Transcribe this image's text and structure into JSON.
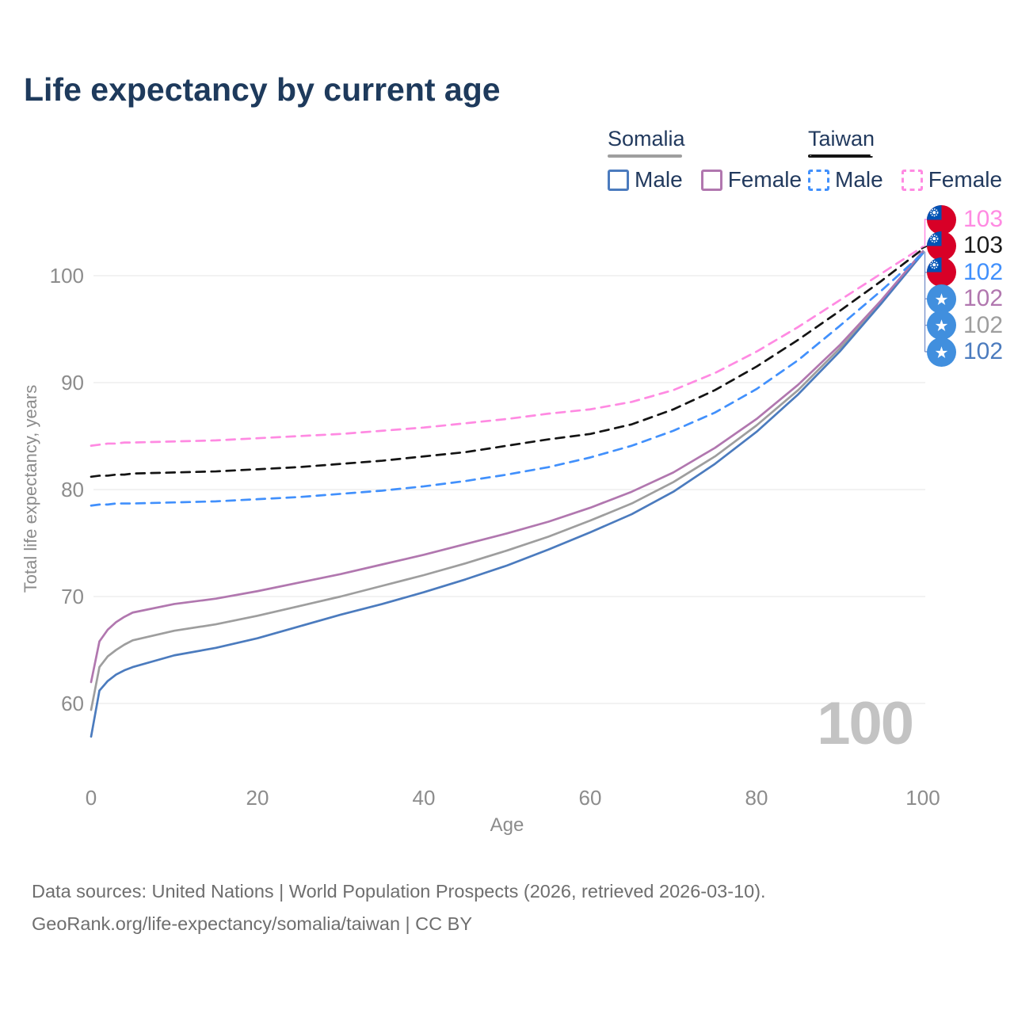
{
  "header": {
    "title": "Life expectancy by current age"
  },
  "legend": {
    "groups": [
      {
        "country": "Somalia",
        "line_style": "solid",
        "line_color": "#9e9e9e",
        "items": [
          {
            "label": "Male",
            "color": "#4b7bbe",
            "dashed": false
          },
          {
            "label": "Female",
            "color": "#b177af",
            "dashed": false
          }
        ]
      },
      {
        "country": "Taiwan",
        "line_style": "dashed",
        "line_color": "#141414",
        "items": [
          {
            "label": "Male",
            "color": "#4190fc",
            "dashed": true
          },
          {
            "label": "Female",
            "color": "#ff8ae2",
            "dashed": true
          }
        ]
      }
    ]
  },
  "chart_data": {
    "type": "line",
    "title": "Life expectancy by current age",
    "xlabel": "Age",
    "ylabel": "Total life expectancy, years",
    "x_ticks": [
      0,
      20,
      40,
      60,
      80,
      100
    ],
    "y_ticks": [
      60,
      70,
      80,
      90,
      100
    ],
    "xlim": [
      0,
      100
    ],
    "ylim": [
      56,
      104
    ],
    "grid": "horizontal",
    "legend_position": "top-right",
    "x": [
      0,
      1,
      2,
      3,
      4,
      5,
      10,
      15,
      20,
      25,
      30,
      35,
      40,
      45,
      50,
      55,
      60,
      65,
      70,
      75,
      80,
      85,
      90,
      95,
      100
    ],
    "series": [
      {
        "id": "somalia-all",
        "name": "Somalia All",
        "country": "Somalia",
        "sex": "all",
        "color": "#9e9e9e",
        "dashed": false,
        "values": [
          59.4,
          63.4,
          64.4,
          65.0,
          65.5,
          65.9,
          66.8,
          67.4,
          68.2,
          69.1,
          70.0,
          71.0,
          72.0,
          73.1,
          74.3,
          75.6,
          77.1,
          78.7,
          80.7,
          83.1,
          86.0,
          89.3,
          93.2,
          97.5,
          102.2
        ]
      },
      {
        "id": "somalia-male",
        "name": "Somalia Male",
        "country": "Somalia",
        "sex": "male",
        "color": "#4b7bbe",
        "dashed": false,
        "values": [
          56.9,
          61.2,
          62.1,
          62.7,
          63.1,
          63.4,
          64.5,
          65.2,
          66.1,
          67.2,
          68.3,
          69.3,
          70.4,
          71.6,
          72.9,
          74.4,
          76.0,
          77.7,
          79.8,
          82.4,
          85.4,
          88.9,
          92.9,
          97.4,
          102.1
        ]
      },
      {
        "id": "somalia-female",
        "name": "Somalia Female",
        "country": "Somalia",
        "sex": "female",
        "color": "#b177af",
        "dashed": false,
        "values": [
          62.0,
          65.8,
          66.9,
          67.6,
          68.1,
          68.5,
          69.3,
          69.8,
          70.5,
          71.3,
          72.1,
          73.0,
          73.9,
          74.9,
          75.9,
          77.0,
          78.3,
          79.8,
          81.6,
          83.9,
          86.6,
          89.8,
          93.5,
          97.7,
          102.3
        ]
      },
      {
        "id": "taiwan-male",
        "name": "Taiwan Male",
        "country": "Taiwan",
        "sex": "male",
        "color": "#4190fc",
        "dashed": true,
        "values": [
          78.5,
          78.6,
          78.6,
          78.7,
          78.7,
          78.7,
          78.8,
          78.9,
          79.1,
          79.3,
          79.6,
          79.9,
          80.3,
          80.8,
          81.4,
          82.1,
          83.0,
          84.1,
          85.5,
          87.2,
          89.4,
          92.1,
          95.3,
          98.6,
          102.1
        ]
      },
      {
        "id": "taiwan-all",
        "name": "Taiwan All",
        "country": "Taiwan",
        "sex": "all",
        "color": "#141414",
        "dashed": true,
        "values": [
          81.2,
          81.3,
          81.3,
          81.4,
          81.4,
          81.5,
          81.6,
          81.7,
          81.9,
          82.1,
          82.4,
          82.7,
          83.1,
          83.5,
          84.1,
          84.7,
          85.2,
          86.1,
          87.5,
          89.3,
          91.5,
          94.0,
          96.7,
          99.5,
          102.5
        ]
      },
      {
        "id": "taiwan-female",
        "name": "Taiwan Female",
        "country": "Taiwan",
        "sex": "female",
        "color": "#ff8ae2",
        "dashed": true,
        "values": [
          84.1,
          84.2,
          84.3,
          84.3,
          84.4,
          84.4,
          84.5,
          84.6,
          84.8,
          85.0,
          85.2,
          85.5,
          85.8,
          86.2,
          86.6,
          87.1,
          87.5,
          88.2,
          89.3,
          90.9,
          92.9,
          95.2,
          97.7,
          100.2,
          102.7
        ]
      }
    ],
    "end_labels": [
      {
        "series_id": "taiwan-female",
        "flag": "taiwan",
        "value": "103",
        "color": "#ff8ae2"
      },
      {
        "series_id": "taiwan-all",
        "flag": "taiwan",
        "value": "103",
        "color": "#1a1a1a"
      },
      {
        "series_id": "taiwan-male",
        "flag": "taiwan",
        "value": "102",
        "color": "#4190fc"
      },
      {
        "series_id": "somalia-female",
        "flag": "somalia",
        "value": "102",
        "color": "#b177af"
      },
      {
        "series_id": "somalia-all",
        "flag": "somalia",
        "value": "102",
        "color": "#9e9e9e"
      },
      {
        "series_id": "somalia-male",
        "flag": "somalia",
        "value": "102",
        "color": "#4b7bbe"
      }
    ],
    "flag_colors": {
      "taiwan_red": "#d80027",
      "taiwan_blue": "#0052b4",
      "somalia_blue": "#418fde",
      "star_white": "#ffffff"
    },
    "connector_color": "#7e95cc"
  },
  "watermark": "100",
  "footer": {
    "line1": "Data sources: United Nations | World Population Prospects (2026, retrieved 2026-03-10).",
    "line2": "GeoRank.org/life-expectancy/somalia/taiwan | CC BY"
  }
}
